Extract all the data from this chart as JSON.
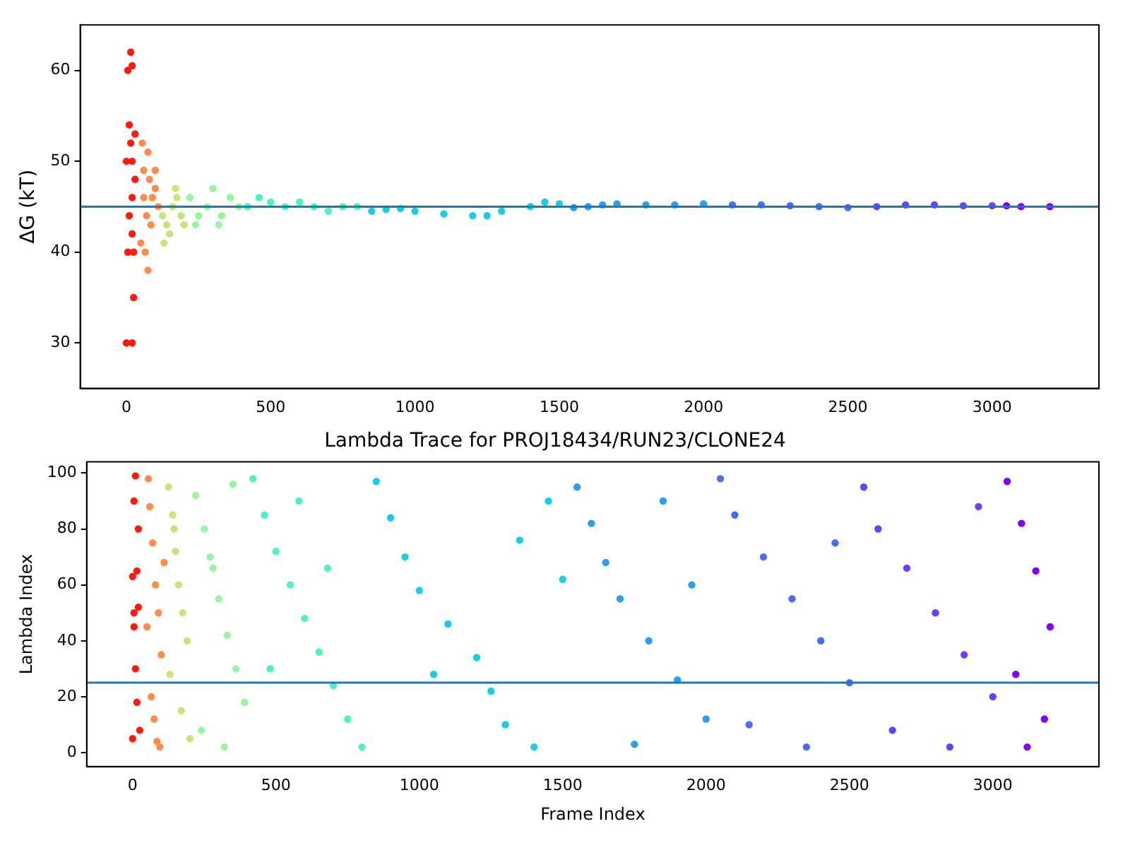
{
  "chart_data": [
    {
      "type": "scatter",
      "ylabel": "ΔG (kT)",
      "marker": "circle",
      "legend": false,
      "grid": false,
      "xlim": [
        -160,
        3370
      ],
      "xticks": [
        0,
        500,
        1000,
        1500,
        2000,
        2500,
        3000
      ],
      "ylim": [
        25,
        65
      ],
      "yticks": [
        30,
        40,
        50,
        60
      ],
      "ref_lines": [
        {
          "axis": "y",
          "value": 45,
          "color": "#1f77b4"
        }
      ],
      "series": [
        {
          "color": "#ff1a0d",
          "x": [
            0,
            20,
            5,
            15,
            20,
            10,
            15,
            0,
            20,
            20,
            5,
            25,
            25,
            10,
            30,
            20,
            30
          ],
          "values": [
            30,
            30,
            60,
            62,
            60.5,
            54,
            52,
            50,
            50,
            46,
            40,
            40,
            35,
            44,
            48,
            42,
            53
          ]
        },
        {
          "color": "#ff8c4a",
          "x": [
            55,
            60,
            75,
            80,
            60,
            70,
            90,
            65,
            75,
            50,
            100,
            110,
            85,
            100
          ],
          "values": [
            52,
            49,
            51,
            48,
            46,
            44,
            46,
            40,
            38,
            41,
            47,
            45,
            43,
            49
          ]
        },
        {
          "color": "#cde27c",
          "x": [
            125,
            140,
            150,
            160,
            175,
            190,
            130,
            170,
            200
          ],
          "values": [
            44,
            43,
            42,
            45,
            46,
            44,
            41,
            47,
            43
          ]
        },
        {
          "color": "#9af59f",
          "x": [
            220,
            250,
            280,
            300,
            330,
            360,
            390,
            240,
            320
          ],
          "values": [
            46,
            44,
            45,
            47,
            44,
            46,
            45,
            43,
            43
          ]
        },
        {
          "color": "#4ef0c8",
          "x": [
            420,
            460,
            500,
            550,
            600,
            650,
            700,
            750,
            800
          ],
          "values": [
            45,
            46,
            45.5,
            45,
            45.5,
            45,
            44.5,
            45,
            45
          ]
        },
        {
          "color": "#1ccbe4",
          "x": [
            850,
            900,
            950,
            1000,
            1100,
            1200,
            1250,
            1300,
            1400,
            1450,
            1500
          ],
          "values": [
            44.5,
            44.7,
            44.8,
            44.5,
            44.2,
            44,
            44,
            44.5,
            45,
            45.5,
            45.3
          ]
        },
        {
          "color": "#2a9ef2",
          "x": [
            1550,
            1600,
            1650,
            1700,
            1800,
            1900,
            2000
          ],
          "values": [
            44.9,
            45,
            45.2,
            45.3,
            45.2,
            45.2,
            45.3
          ]
        },
        {
          "color": "#4a6cf8",
          "x": [
            2100,
            2200,
            2300,
            2400,
            2500
          ],
          "values": [
            45.2,
            45.2,
            45.1,
            45,
            44.9
          ]
        },
        {
          "color": "#6a40fc",
          "x": [
            2600,
            2700,
            2800,
            2900,
            3000
          ],
          "values": [
            45,
            45.2,
            45.2,
            45.1,
            45.1
          ]
        },
        {
          "color": "#8000ff",
          "x": [
            3050,
            3100,
            3200
          ],
          "values": [
            45.1,
            45,
            45
          ]
        }
      ]
    },
    {
      "type": "scatter",
      "title": "Lambda Trace for PROJ18434/RUN23/CLONE24",
      "xlabel": "Frame Index",
      "ylabel": "Lambda Index",
      "marker": "circle",
      "legend": false,
      "grid": false,
      "xlim": [
        -160,
        3370
      ],
      "xticks": [
        0,
        500,
        1000,
        1500,
        2000,
        2500,
        3000
      ],
      "ylim": [
        -5,
        104
      ],
      "yticks": [
        0,
        20,
        40,
        60,
        80,
        100
      ],
      "ref_lines": [
        {
          "axis": "y",
          "value": 25,
          "color": "#1f77b4"
        }
      ],
      "series": [
        {
          "color": "#ff1a0d",
          "x": [
            0,
            5,
            10,
            15,
            20,
            5,
            10,
            0,
            15,
            20,
            25,
            5
          ],
          "values": [
            5,
            90,
            99,
            65,
            52,
            45,
            30,
            63,
            18,
            80,
            8,
            50
          ]
        },
        {
          "color": "#ff8c4a",
          "x": [
            55,
            60,
            70,
            80,
            90,
            100,
            65,
            75,
            85,
            95,
            110,
            50
          ],
          "values": [
            98,
            88,
            75,
            60,
            50,
            35,
            20,
            12,
            4,
            2,
            68,
            45
          ]
        },
        {
          "color": "#cde27c",
          "x": [
            125,
            140,
            150,
            160,
            175,
            190,
            130,
            170,
            200,
            145
          ],
          "values": [
            95,
            85,
            72,
            60,
            50,
            40,
            28,
            15,
            5,
            80
          ]
        },
        {
          "color": "#9af59f",
          "x": [
            220,
            250,
            280,
            300,
            330,
            360,
            390,
            240,
            320,
            270,
            350
          ],
          "values": [
            92,
            80,
            66,
            55,
            42,
            30,
            18,
            8,
            2,
            70,
            96
          ]
        },
        {
          "color": "#4ef0c8",
          "x": [
            420,
            460,
            500,
            550,
            600,
            650,
            700,
            750,
            800,
            480,
            580,
            680
          ],
          "values": [
            98,
            85,
            72,
            60,
            48,
            36,
            24,
            12,
            2,
            30,
            90,
            66
          ]
        },
        {
          "color": "#1ccbe4",
          "x": [
            850,
            900,
            950,
            1000,
            1100,
            1200,
            1250,
            1300,
            1400,
            1450,
            1500,
            1050,
            1350
          ],
          "values": [
            97,
            84,
            70,
            58,
            46,
            34,
            22,
            10,
            2,
            90,
            62,
            28,
            76
          ]
        },
        {
          "color": "#2a9ef2",
          "x": [
            1550,
            1600,
            1650,
            1700,
            1800,
            1900,
            2000,
            1750,
            1850,
            1950
          ],
          "values": [
            95,
            82,
            68,
            55,
            40,
            26,
            12,
            3,
            90,
            60
          ]
        },
        {
          "color": "#4a6cf8",
          "x": [
            2050,
            2100,
            2200,
            2300,
            2400,
            2500,
            2150,
            2350,
            2450
          ],
          "values": [
            98,
            85,
            70,
            55,
            40,
            25,
            10,
            2,
            75
          ]
        },
        {
          "color": "#6a40fc",
          "x": [
            2550,
            2600,
            2700,
            2800,
            2900,
            3000,
            2650,
            2850,
            2950
          ],
          "values": [
            95,
            80,
            66,
            50,
            35,
            20,
            8,
            2,
            88
          ]
        },
        {
          "color": "#8000ff",
          "x": [
            3050,
            3100,
            3150,
            3200,
            3080,
            3180,
            3120
          ],
          "values": [
            97,
            82,
            65,
            45,
            28,
            12,
            2
          ]
        }
      ]
    }
  ]
}
